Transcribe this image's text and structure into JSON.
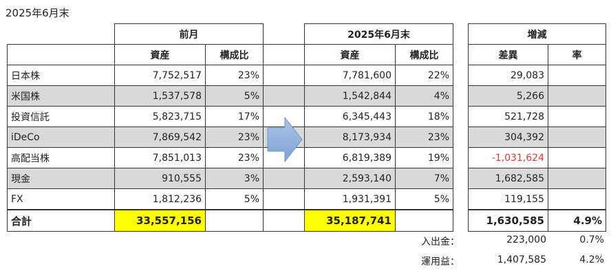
{
  "title": "2025年6月末",
  "headers": {
    "prev_group": "前月",
    "curr_group": "2025年6月末",
    "diff_group": "増減",
    "assets": "資産",
    "ratio": "構成比",
    "diff": "差異",
    "rate": "率"
  },
  "rows": [
    {
      "name": "日本株",
      "prev": "7,752,517",
      "prev_pct": "23%",
      "curr": "7,781,600",
      "curr_pct": "22%",
      "diff": "29,083",
      "rate": ""
    },
    {
      "name": "米国株",
      "prev": "1,537,578",
      "prev_pct": "5%",
      "curr": "1,542,844",
      "curr_pct": "4%",
      "diff": "5,266",
      "rate": ""
    },
    {
      "name": "投資信託",
      "prev": "5,823,715",
      "prev_pct": "17%",
      "curr": "6,345,443",
      "curr_pct": "18%",
      "diff": "521,728",
      "rate": ""
    },
    {
      "name": "iDeCo",
      "prev": "7,869,542",
      "prev_pct": "23%",
      "curr": "8,173,934",
      "curr_pct": "23%",
      "diff": "304,392",
      "rate": ""
    },
    {
      "name": "高配当株",
      "prev": "7,851,013",
      "prev_pct": "23%",
      "curr": "6,819,389",
      "curr_pct": "19%",
      "diff": "-1,031,624",
      "rate": ""
    },
    {
      "name": "現金",
      "prev": "910,555",
      "prev_pct": "3%",
      "curr": "2,593,140",
      "curr_pct": "7%",
      "diff": "1,682,585",
      "rate": ""
    },
    {
      "name": "FX",
      "prev": "1,812,236",
      "prev_pct": "5%",
      "curr": "1,931,391",
      "curr_pct": "5%",
      "diff": "119,155",
      "rate": ""
    }
  ],
  "total": {
    "name": "合計",
    "prev": "33,557,156",
    "curr": "35,187,741",
    "diff": "1,630,585",
    "rate": "4.9%"
  },
  "summary": [
    {
      "label": "入出金：",
      "value": "223,000",
      "rate": "0.7%"
    },
    {
      "label": "運用益：",
      "value": "1,407,585",
      "rate": "4.2%"
    }
  ],
  "colors": {
    "highlight": "#ffff00",
    "shade": "#d9d9d9",
    "negative": "#e23b3b",
    "arrow": "#8fb0dc"
  }
}
